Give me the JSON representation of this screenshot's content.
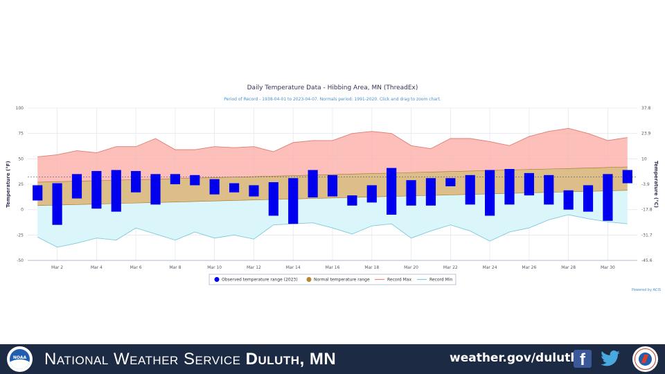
{
  "chart_data": {
    "type": "bar",
    "title": "Daily Temperature Data - Hibbing Area, MN (ThreadEx)",
    "subtitle": "Period of Record - 1938-04-01 to 2023-04-07. Normals period: 1991-2020. Click and drag to zoom chart.",
    "ylabel": "Temperature (°F)",
    "ylabel_right": "Temperature (°C)",
    "ylim": [
      -50,
      100
    ],
    "y_ticks": [
      "100",
      "75",
      "50",
      "25",
      "0",
      "-25",
      "-50"
    ],
    "y_ticks_right": [
      "37.8",
      "23.9",
      "10",
      "-3.9",
      "-17.8",
      "-31.7",
      "-45.6"
    ],
    "x_tick_labels": [
      "Mar 2",
      "Mar 4",
      "Mar 6",
      "Mar 8",
      "Mar 10",
      "Mar 12",
      "Mar 14",
      "Mar 16",
      "Mar 18",
      "Mar 20",
      "Mar 22",
      "Mar 24",
      "Mar 26",
      "Mar 28",
      "Mar 30"
    ],
    "days": [
      1,
      2,
      3,
      4,
      5,
      6,
      7,
      8,
      9,
      10,
      11,
      12,
      13,
      14,
      15,
      16,
      17,
      18,
      19,
      20,
      21,
      22,
      23,
      24,
      25,
      26,
      27,
      28,
      29,
      30,
      31
    ],
    "observed": [
      [
        9,
        24
      ],
      [
        -15,
        26
      ],
      [
        11,
        35
      ],
      [
        1,
        38
      ],
      [
        -2,
        39
      ],
      [
        17,
        38
      ],
      [
        5,
        35
      ],
      [
        25,
        35
      ],
      [
        24,
        34
      ],
      [
        15,
        30
      ],
      [
        17,
        26
      ],
      [
        13,
        24
      ],
      [
        -6,
        27
      ],
      [
        -14,
        31
      ],
      [
        12,
        39
      ],
      [
        13,
        34
      ],
      [
        4,
        14
      ],
      [
        7,
        24
      ],
      [
        -5,
        41
      ],
      [
        4,
        29
      ],
      [
        4,
        31
      ],
      [
        23,
        31
      ],
      [
        5,
        34
      ],
      [
        -6,
        39
      ],
      [
        5,
        40
      ],
      [
        14,
        36
      ],
      [
        5,
        34
      ],
      [
        0,
        19
      ],
      [
        -2,
        24
      ],
      [
        -11,
        35
      ],
      [
        26,
        39
      ]
    ],
    "normal_low": [
      4,
      4.5,
      5,
      5.5,
      6,
      6.5,
      7,
      7.5,
      8,
      8.5,
      9,
      9.5,
      10,
      10.5,
      11,
      11.5,
      12,
      12.5,
      13,
      13.5,
      14,
      14.5,
      15,
      15.5,
      16,
      16.5,
      17,
      17.5,
      18,
      18.5,
      19
    ],
    "normal_high": [
      27,
      27.5,
      28,
      28.5,
      29,
      29.5,
      30,
      30.5,
      31,
      31.5,
      32,
      32.5,
      33,
      33.5,
      34,
      34.5,
      35,
      35.5,
      36,
      36.5,
      37,
      37.5,
      38,
      38.5,
      39,
      39.5,
      40,
      40.5,
      41,
      41.5,
      42
    ],
    "record_max": [
      52,
      54,
      58,
      56,
      62,
      62,
      70,
      59,
      59,
      62,
      61,
      62,
      57,
      66,
      68,
      68,
      75,
      77,
      75,
      63,
      60,
      70,
      70,
      67,
      63,
      72,
      77,
      80,
      75,
      68,
      71
    ],
    "record_min": [
      -27,
      -37,
      -33,
      -28,
      -30,
      -18,
      -24,
      -30,
      -22,
      -28,
      -25,
      -29,
      -15,
      -14,
      -13,
      -18,
      -24,
      -16,
      -14,
      -28,
      -21,
      -15,
      -21,
      -31,
      -22,
      -18,
      -10,
      -5,
      -9,
      -12,
      -14
    ],
    "series": [
      {
        "name": "Observed temperature range (2023)",
        "color": "#0000ee"
      },
      {
        "name": "Normal temperature range",
        "color": "#b8862e"
      },
      {
        "name": "Record Max",
        "color": "#e8857d"
      },
      {
        "name": "Record Min",
        "color": "#7fc8d9"
      }
    ],
    "credit": "Powered by ACIS",
    "legend_position": "bottom-center",
    "grid": true
  },
  "footer": {
    "org_prefix": "National Weather Service ",
    "org_office": "Duluth, MN",
    "url": "weather.gov/duluth",
    "facebook_glyph": "f",
    "noaa_label": "NOAA",
    "icons": [
      "noaa-logo",
      "facebook-icon",
      "twitter-icon",
      "nws-logo"
    ],
    "background_color": "#1c2a44"
  }
}
